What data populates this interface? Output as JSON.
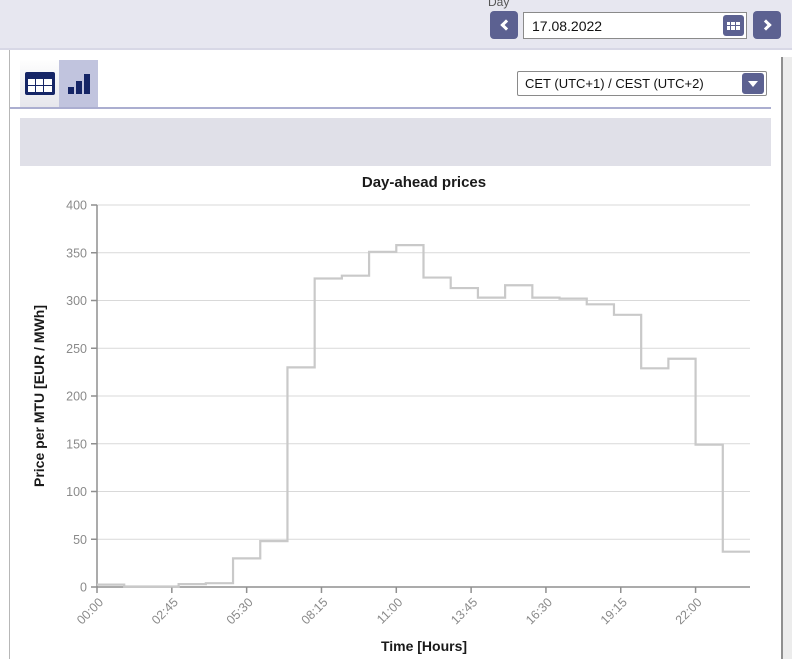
{
  "header": {
    "day_label": "Day",
    "date_value": "17.08.2022"
  },
  "toolbar": {
    "views": [
      "table-view",
      "chart-view"
    ],
    "selected_view": "chart-view"
  },
  "timezone": {
    "selected": "CET (UTC+1) / CEST (UTC+2)"
  },
  "icons": {
    "prev": "chevron-left-icon",
    "next": "chevron-right-icon",
    "calendar": "calendar-icon",
    "table_view": "table-grid-icon",
    "chart_view": "bar-chart-icon",
    "dropdown": "chevron-down-icon"
  },
  "colors": {
    "accent_purple": "#5c6191",
    "header_bg": "#e7e7f0",
    "toolbar_selected_bg": "#c1c4de",
    "toolbar_underline": "#abaed0",
    "band_bg": "#e0e0e8",
    "icon_navy": "#152566",
    "line": "#c9c9c9",
    "grid": "#d9d9d9",
    "axis": "#8f8f8f",
    "tick_text": "#8a8a8a"
  },
  "chart_data": {
    "type": "line",
    "subtype": "step-hourly",
    "title": "Day-ahead prices",
    "xlabel": "Time [Hours]",
    "ylabel": "Price per MTU [EUR / MWh]",
    "ylim": [
      0,
      400
    ],
    "xlim_hours": [
      0,
      24
    ],
    "grid": "horizontal",
    "legend": "none",
    "y_ticks": [
      0,
      50,
      100,
      150,
      200,
      250,
      300,
      350,
      400
    ],
    "x_ticks": [
      {
        "hour": 0,
        "label": "00:00"
      },
      {
        "hour": 2.75,
        "label": "02:45"
      },
      {
        "hour": 5.5,
        "label": "05:30"
      },
      {
        "hour": 8.25,
        "label": "08:15"
      },
      {
        "hour": 11,
        "label": "11:00"
      },
      {
        "hour": 13.75,
        "label": "13:45"
      },
      {
        "hour": 16.5,
        "label": "16:30"
      },
      {
        "hour": 19.25,
        "label": "19:15"
      },
      {
        "hour": 22,
        "label": "22:00"
      }
    ],
    "series": [
      {
        "name": "Day-ahead price",
        "unit": "EUR/MWh",
        "hours": [
          0,
          1,
          2,
          3,
          4,
          5,
          6,
          7,
          8,
          9,
          10,
          11,
          12,
          13,
          14,
          15,
          16,
          17,
          18,
          19,
          20,
          21,
          22,
          23
        ],
        "values": [
          2.5,
          0.5,
          0.5,
          3,
          4,
          30,
          48,
          230,
          323,
          326,
          351,
          358,
          324,
          313,
          303,
          316,
          303,
          302,
          296,
          285,
          229,
          239,
          149,
          37
        ]
      }
    ]
  }
}
